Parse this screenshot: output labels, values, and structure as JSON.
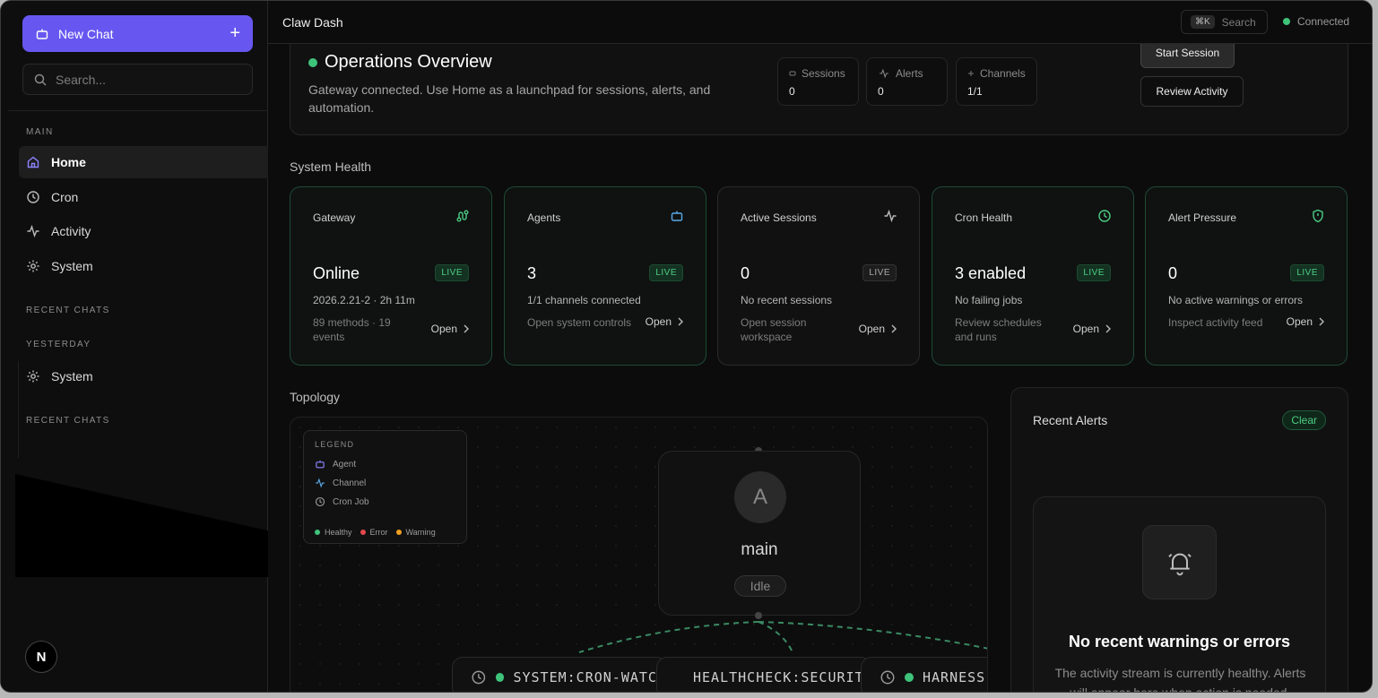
{
  "sidebar": {
    "new_chat_label": "New Chat",
    "search_placeholder": "Search...",
    "main_label": "MAIN",
    "items": [
      {
        "label": "Home"
      },
      {
        "label": "Cron"
      },
      {
        "label": "Activity"
      },
      {
        "label": "System"
      }
    ],
    "recent_chats_label": "RECENT CHATS",
    "yesterday_label": "YESTERDAY",
    "yesterday_items": [
      {
        "label": "System"
      }
    ],
    "recent_chats_label_2": "RECENT CHATS",
    "avatar_letter": "N"
  },
  "header": {
    "title": "Claw Dash",
    "search_kbd": "⌘K",
    "search_label": "Search",
    "status": "Connected"
  },
  "overview": {
    "title": "Operations Overview",
    "description": "Gateway connected. Use Home as a launchpad for sessions, alerts, and automation.",
    "stats": [
      {
        "label": "Sessions",
        "value": "0"
      },
      {
        "label": "Alerts",
        "value": "0"
      },
      {
        "label": "Channels",
        "value": "1/1"
      }
    ],
    "start_session_label": "Start Session",
    "review_activity_label": "Review Activity"
  },
  "system_health": {
    "title": "System Health",
    "cards": [
      {
        "title": "Gateway",
        "value": "Online",
        "badge": "LIVE",
        "sub": "2026.2.21-2 · 2h 11m",
        "desc": "89 methods · 19 events",
        "open": "Open"
      },
      {
        "title": "Agents",
        "value": "3",
        "badge": "LIVE",
        "sub": "1/1 channels connected",
        "desc": "Open system controls",
        "open": "Open"
      },
      {
        "title": "Active Sessions",
        "value": "0",
        "badge": "LIVE",
        "sub": "No recent sessions",
        "desc": "Open session workspace",
        "open": "Open"
      },
      {
        "title": "Cron Health",
        "value": "3 enabled",
        "badge": "LIVE",
        "sub": "No failing jobs",
        "desc": "Review schedules and runs",
        "open": "Open"
      },
      {
        "title": "Alert Pressure",
        "value": "0",
        "badge": "LIVE",
        "sub": "No active warnings or errors",
        "desc": "Inspect activity feed",
        "open": "Open"
      }
    ]
  },
  "topology": {
    "title": "Topology",
    "legend": {
      "title": "LEGEND",
      "items": [
        "Agent",
        "Channel",
        "Cron Job"
      ],
      "statuses": [
        "Healthy",
        "Error",
        "Warning"
      ]
    },
    "node": {
      "avatar": "A",
      "name": "main",
      "status": "Idle"
    },
    "cron_nodes": [
      "SYSTEM:CRON-WATCH",
      "HEALTHCHECK:SECURITY",
      "HARNESS"
    ]
  },
  "alerts": {
    "title": "Recent Alerts",
    "clear_label": "Clear",
    "empty_title": "No recent warnings or errors",
    "empty_desc": "The activity stream is currently healthy. Alerts will appear here when action is needed."
  },
  "colors": {
    "accent": "#6757f0",
    "healthy": "#3fc37a",
    "error": "#e5484d",
    "warning": "#f0a020"
  }
}
